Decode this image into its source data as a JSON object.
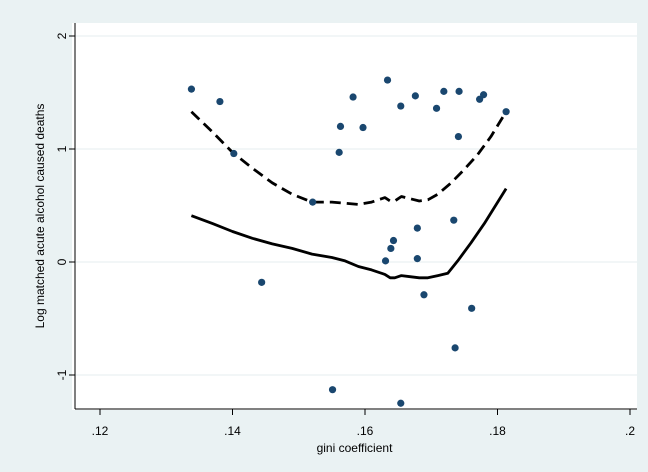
{
  "chart_data": {
    "type": "scatter",
    "title": "",
    "xlabel": "gini coefficient",
    "ylabel": "Log matched acute alcohol caused deaths",
    "xlim": [
      0.12,
      0.2
    ],
    "ylim": [
      -1.3,
      2.1
    ],
    "x_ticks": [
      0.12,
      0.14,
      0.16,
      0.18,
      0.2
    ],
    "x_tick_labels": [
      ".12",
      ".14",
      ".16",
      ".18",
      ".2"
    ],
    "y_ticks": [
      -1,
      0,
      1,
      2
    ],
    "y_tick_labels": [
      "-1",
      "0",
      "1",
      "2"
    ],
    "grid": true,
    "legend": "none",
    "colors": {
      "plot_bg": "#ffffff",
      "outer_bg": "#eaf2f3",
      "grid": "#e6eeef",
      "marker": "#1a476f",
      "line": "#000000"
    },
    "series": [
      {
        "type": "scatter",
        "values": [
          {
            "x": 0.1338,
            "y": 1.53
          },
          {
            "x": 0.1381,
            "y": 1.42
          },
          {
            "x": 0.1402,
            "y": 0.96
          },
          {
            "x": 0.1444,
            "y": -0.18
          },
          {
            "x": 0.1521,
            "y": 0.53
          },
          {
            "x": 0.1551,
            "y": -1.13
          },
          {
            "x": 0.1561,
            "y": 0.97
          },
          {
            "x": 0.1563,
            "y": 1.2
          },
          {
            "x": 0.1582,
            "y": 1.46
          },
          {
            "x": 0.1597,
            "y": 1.19
          },
          {
            "x": 0.1631,
            "y": 0.01
          },
          {
            "x": 0.1634,
            "y": 1.61
          },
          {
            "x": 0.1639,
            "y": 0.12
          },
          {
            "x": 0.1643,
            "y": 0.19
          },
          {
            "x": 0.1654,
            "y": 1.38
          },
          {
            "x": 0.1654,
            "y": -1.25
          },
          {
            "x": 0.1676,
            "y": 1.47
          },
          {
            "x": 0.1679,
            "y": 0.3
          },
          {
            "x": 0.1679,
            "y": 0.03
          },
          {
            "x": 0.1689,
            "y": -0.29
          },
          {
            "x": 0.1708,
            "y": 1.36
          },
          {
            "x": 0.1719,
            "y": 1.51
          },
          {
            "x": 0.1734,
            "y": 0.37
          },
          {
            "x": 0.1736,
            "y": -0.76
          },
          {
            "x": 0.1741,
            "y": 1.11
          },
          {
            "x": 0.1742,
            "y": 1.51
          },
          {
            "x": 0.1761,
            "y": -0.41
          },
          {
            "x": 0.1773,
            "y": 1.44
          },
          {
            "x": 0.1779,
            "y": 1.48
          },
          {
            "x": 0.1813,
            "y": 1.33
          }
        ]
      },
      {
        "type": "line",
        "style": "dashed",
        "values": [
          {
            "x": 0.1338,
            "y": 1.33
          },
          {
            "x": 0.137,
            "y": 1.15
          },
          {
            "x": 0.14,
            "y": 0.97
          },
          {
            "x": 0.143,
            "y": 0.83
          },
          {
            "x": 0.146,
            "y": 0.7
          },
          {
            "x": 0.149,
            "y": 0.6
          },
          {
            "x": 0.152,
            "y": 0.53
          },
          {
            "x": 0.155,
            "y": 0.53
          },
          {
            "x": 0.157,
            "y": 0.52
          },
          {
            "x": 0.159,
            "y": 0.51
          },
          {
            "x": 0.161,
            "y": 0.53
          },
          {
            "x": 0.163,
            "y": 0.57
          },
          {
            "x": 0.1638,
            "y": 0.54
          },
          {
            "x": 0.1645,
            "y": 0.54
          },
          {
            "x": 0.1655,
            "y": 0.58
          },
          {
            "x": 0.1668,
            "y": 0.56
          },
          {
            "x": 0.1682,
            "y": 0.54
          },
          {
            "x": 0.1695,
            "y": 0.55
          },
          {
            "x": 0.171,
            "y": 0.6
          },
          {
            "x": 0.173,
            "y": 0.7
          },
          {
            "x": 0.175,
            "y": 0.82
          },
          {
            "x": 0.177,
            "y": 0.95
          },
          {
            "x": 0.179,
            "y": 1.11
          },
          {
            "x": 0.1813,
            "y": 1.33
          }
        ]
      },
      {
        "type": "line",
        "style": "solid",
        "values": [
          {
            "x": 0.1338,
            "y": 0.41
          },
          {
            "x": 0.137,
            "y": 0.34
          },
          {
            "x": 0.14,
            "y": 0.27
          },
          {
            "x": 0.143,
            "y": 0.21
          },
          {
            "x": 0.146,
            "y": 0.16
          },
          {
            "x": 0.149,
            "y": 0.12
          },
          {
            "x": 0.152,
            "y": 0.07
          },
          {
            "x": 0.155,
            "y": 0.04
          },
          {
            "x": 0.157,
            "y": 0.01
          },
          {
            "x": 0.159,
            "y": -0.04
          },
          {
            "x": 0.161,
            "y": -0.07
          },
          {
            "x": 0.163,
            "y": -0.11
          },
          {
            "x": 0.1638,
            "y": -0.14
          },
          {
            "x": 0.1645,
            "y": -0.14
          },
          {
            "x": 0.1655,
            "y": -0.12
          },
          {
            "x": 0.1668,
            "y": -0.13
          },
          {
            "x": 0.1682,
            "y": -0.14
          },
          {
            "x": 0.1695,
            "y": -0.14
          },
          {
            "x": 0.171,
            "y": -0.12
          },
          {
            "x": 0.1725,
            "y": -0.1
          },
          {
            "x": 0.174,
            "y": 0.01
          },
          {
            "x": 0.176,
            "y": 0.17
          },
          {
            "x": 0.178,
            "y": 0.34
          },
          {
            "x": 0.1813,
            "y": 0.65
          }
        ]
      }
    ]
  }
}
